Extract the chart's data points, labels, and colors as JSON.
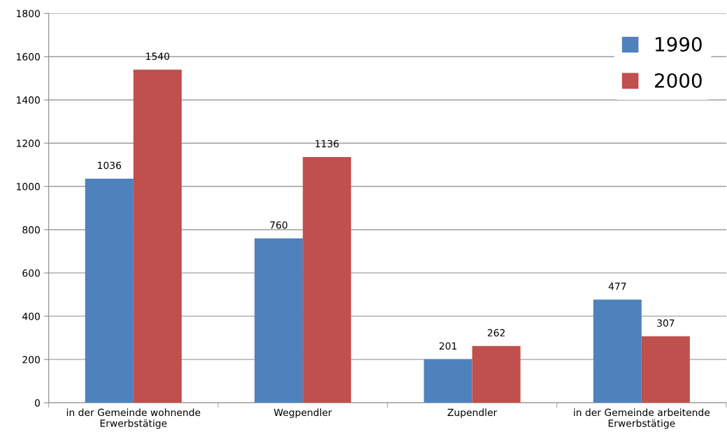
{
  "chart_data": {
    "type": "bar",
    "categories": [
      "in der Gemeinde wohnende\nErwerbstätige",
      "Wegpendler",
      "Zupendler",
      "in der Gemeinde arbeitende\nErwerbstätige"
    ],
    "series": [
      {
        "name": "1990",
        "color": "#4f81bd",
        "values": [
          1036,
          760,
          201,
          477
        ]
      },
      {
        "name": "2000",
        "color": "#c0504d",
        "values": [
          1540,
          1136,
          262,
          307
        ]
      }
    ],
    "ylim": [
      0,
      1800
    ],
    "yticks": [
      0,
      200,
      400,
      600,
      800,
      1000,
      1200,
      1400,
      1600,
      1800
    ],
    "grid": "y",
    "legend": "top right",
    "data_labels": true
  }
}
